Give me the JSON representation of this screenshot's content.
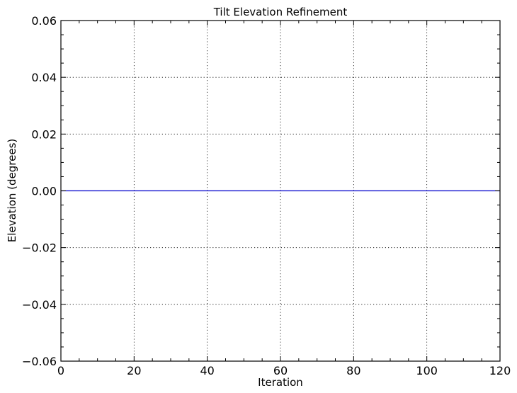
{
  "chart_data": {
    "type": "line",
    "title": "Tilt Elevation Refinement",
    "xlabel": "Iteration",
    "ylabel": "Elevation (degrees)",
    "xlim": [
      0,
      120
    ],
    "ylim": [
      -0.06,
      0.06
    ],
    "x_ticks": [
      0,
      20,
      40,
      60,
      80,
      100,
      120
    ],
    "y_ticks": [
      -0.06,
      -0.04,
      -0.02,
      0.0,
      0.02,
      0.04,
      0.06
    ],
    "x_tick_labels": [
      "0",
      "20",
      "40",
      "60",
      "80",
      "100",
      "120"
    ],
    "y_tick_labels": [
      "−0.06",
      "−0.04",
      "−0.02",
      "0.00",
      "0.02",
      "0.04",
      "0.06"
    ],
    "grid": true,
    "series": [
      {
        "color": "#0000cc",
        "x": [
          0,
          120
        ],
        "y": [
          0.0,
          0.0
        ]
      }
    ]
  }
}
